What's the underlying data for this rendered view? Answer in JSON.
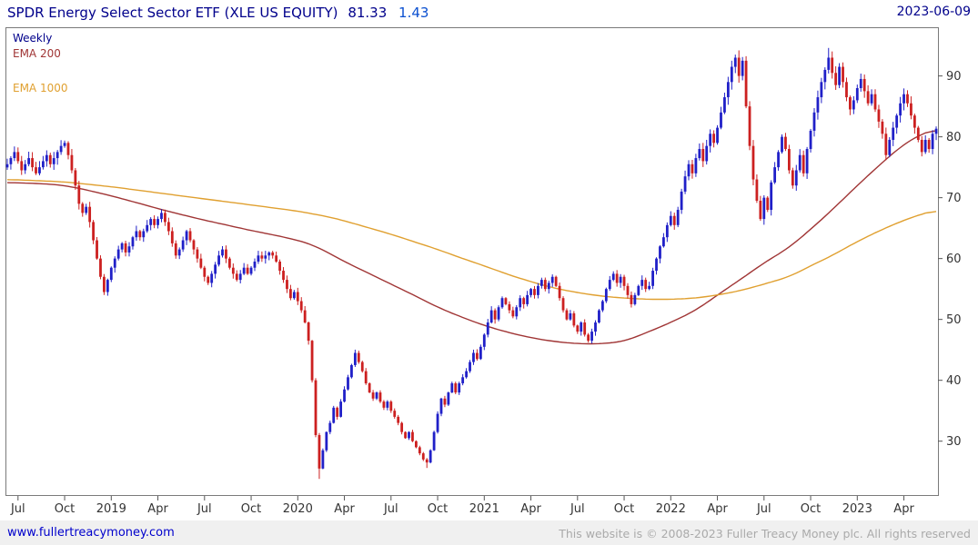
{
  "header": {
    "title": "SPDR Energy Select Sector ETF (XLE US EQUITY)",
    "price": "81.33",
    "change": "1.43",
    "date": "2023-06-09"
  },
  "legend": {
    "timeframe": "Weekly",
    "ema200": "EMA 200",
    "ema1000": "EMA 1000"
  },
  "footer": {
    "link": "www.fullertreacymoney.com",
    "copyright": "This website is © 2008-2023 Fuller Treacy Money plc. All rights reserved"
  },
  "colors": {
    "up": "#2020c8",
    "down": "#cc2020",
    "ema200": "#a03535",
    "ema1000": "#e0a030",
    "title": "#00008b",
    "change": "#0b50d0",
    "axis_text": "#333333",
    "border": "#7a7a7a",
    "tick": "#555555",
    "footer_bg": "#f0f0f0",
    "link": "#0000cc",
    "copyright": "#aaaaaa"
  },
  "chart_data": {
    "type": "candlestick",
    "timeframe": "Weekly",
    "title": "SPDR Energy Select Sector ETF (XLE US EQUITY)",
    "last_price": 81.33,
    "change": 1.43,
    "date": "2023-06-09",
    "ylim": [
      21,
      98
    ],
    "y_ticks": [
      30,
      40,
      50,
      60,
      70,
      80,
      90
    ],
    "x_ticks": [
      {
        "label": "Jul",
        "i": 3
      },
      {
        "label": "Oct",
        "i": 16
      },
      {
        "label": "2019",
        "i": 29
      },
      {
        "label": "Apr",
        "i": 42
      },
      {
        "label": "Jul",
        "i": 55
      },
      {
        "label": "Oct",
        "i": 68
      },
      {
        "label": "2020",
        "i": 81
      },
      {
        "label": "Apr",
        "i": 94
      },
      {
        "label": "Jul",
        "i": 107
      },
      {
        "label": "Oct",
        "i": 120
      },
      {
        "label": "2021",
        "i": 133
      },
      {
        "label": "Apr",
        "i": 146
      },
      {
        "label": "Jul",
        "i": 159
      },
      {
        "label": "Oct",
        "i": 172
      },
      {
        "label": "2022",
        "i": 185
      },
      {
        "label": "Apr",
        "i": 198
      },
      {
        "label": "Jul",
        "i": 211
      },
      {
        "label": "Oct",
        "i": 224
      },
      {
        "label": "2023",
        "i": 237
      },
      {
        "label": "Apr",
        "i": 250
      }
    ],
    "closes": [
      75.5,
      76.5,
      77.5,
      76.0,
      74.5,
      75.5,
      76.5,
      75.0,
      74.0,
      75.0,
      76.0,
      77.0,
      75.5,
      76.5,
      77.5,
      78.5,
      79.0,
      77.0,
      74.5,
      72.0,
      69.0,
      67.5,
      68.5,
      66.0,
      63.0,
      60.0,
      57.0,
      54.5,
      56.5,
      58.5,
      60.0,
      61.5,
      62.5,
      61.0,
      62.0,
      63.5,
      64.5,
      63.5,
      64.5,
      65.5,
      66.5,
      65.5,
      66.5,
      67.5,
      66.0,
      64.5,
      62.5,
      60.5,
      61.5,
      63.0,
      64.5,
      63.0,
      61.5,
      60.0,
      58.5,
      57.0,
      56.0,
      57.5,
      59.0,
      60.5,
      61.5,
      60.0,
      58.5,
      57.5,
      56.5,
      57.5,
      58.5,
      57.5,
      58.5,
      59.5,
      60.5,
      60.0,
      60.5,
      61.0,
      60.5,
      59.5,
      58.0,
      56.5,
      55.0,
      53.5,
      54.5,
      53.0,
      51.5,
      49.5,
      46.5,
      40.0,
      31.0,
      25.5,
      28.5,
      31.5,
      33.0,
      35.5,
      34.0,
      36.5,
      38.5,
      40.5,
      42.5,
      44.5,
      43.0,
      41.5,
      39.5,
      38.0,
      37.0,
      38.0,
      36.5,
      35.5,
      36.5,
      35.0,
      34.0,
      33.0,
      31.5,
      30.5,
      31.5,
      30.0,
      29.0,
      28.0,
      27.0,
      26.5,
      28.5,
      31.5,
      34.5,
      37.0,
      36.0,
      38.0,
      39.5,
      38.0,
      39.5,
      40.5,
      41.5,
      43.0,
      44.5,
      43.5,
      45.5,
      47.5,
      49.5,
      51.5,
      50.0,
      52.0,
      53.5,
      52.5,
      51.5,
      50.5,
      52.0,
      53.5,
      52.5,
      54.0,
      55.0,
      54.0,
      55.5,
      56.5,
      55.0,
      56.0,
      57.0,
      55.5,
      53.5,
      51.5,
      50.0,
      51.0,
      49.0,
      48.0,
      49.5,
      47.5,
      46.5,
      48.0,
      49.5,
      51.5,
      53.0,
      55.0,
      56.5,
      57.5,
      56.0,
      57.0,
      55.5,
      54.0,
      52.5,
      54.0,
      55.5,
      56.5,
      55.0,
      55.5,
      58.0,
      60.0,
      62.0,
      63.5,
      65.5,
      67.0,
      65.5,
      68.0,
      71.0,
      73.5,
      75.5,
      74.0,
      76.5,
      78.0,
      76.0,
      78.5,
      80.5,
      79.0,
      81.5,
      84.0,
      86.5,
      89.0,
      91.5,
      93.0,
      90.0,
      92.5,
      85.0,
      78.5,
      73.0,
      69.5,
      66.5,
      70.0,
      68.0,
      72.5,
      75.0,
      77.5,
      80.0,
      78.0,
      74.5,
      72.0,
      74.5,
      77.0,
      74.0,
      78.0,
      81.0,
      84.0,
      86.5,
      89.0,
      91.0,
      93.0,
      90.5,
      88.5,
      91.5,
      89.0,
      86.5,
      84.5,
      86.0,
      88.0,
      89.5,
      87.5,
      85.5,
      87.0,
      84.5,
      82.5,
      80.5,
      77.0,
      79.5,
      81.5,
      83.5,
      85.5,
      87.0,
      85.5,
      83.5,
      81.5,
      79.5,
      77.5,
      79.5,
      78.0,
      80.5,
      81.33
    ],
    "wick_overrides": {
      "87": {
        "low": 23.8
      },
      "117": {
        "low": 25.6
      },
      "204": {
        "high": 94.2
      },
      "229": {
        "high": 94.6
      }
    },
    "overlays": [
      {
        "name": "EMA 200",
        "color_key": "ema200",
        "keypoints": [
          [
            0,
            72.5
          ],
          [
            10,
            72.3
          ],
          [
            16,
            72.0
          ],
          [
            22,
            71.3
          ],
          [
            29,
            70.3
          ],
          [
            36,
            69.2
          ],
          [
            42,
            68.2
          ],
          [
            48,
            67.3
          ],
          [
            55,
            66.3
          ],
          [
            62,
            65.4
          ],
          [
            68,
            64.6
          ],
          [
            75,
            63.8
          ],
          [
            81,
            63.0
          ],
          [
            85,
            62.3
          ],
          [
            90,
            60.8
          ],
          [
            94,
            59.5
          ],
          [
            100,
            57.8
          ],
          [
            107,
            55.8
          ],
          [
            114,
            53.8
          ],
          [
            120,
            52.0
          ],
          [
            127,
            50.3
          ],
          [
            133,
            49.0
          ],
          [
            140,
            47.8
          ],
          [
            146,
            47.0
          ],
          [
            152,
            46.4
          ],
          [
            159,
            46.0
          ],
          [
            166,
            46.0
          ],
          [
            172,
            46.4
          ],
          [
            179,
            48.0
          ],
          [
            185,
            49.5
          ],
          [
            192,
            51.5
          ],
          [
            198,
            54.0
          ],
          [
            205,
            56.8
          ],
          [
            211,
            59.3
          ],
          [
            218,
            61.8
          ],
          [
            224,
            64.8
          ],
          [
            230,
            68.0
          ],
          [
            237,
            72.0
          ],
          [
            244,
            75.8
          ],
          [
            250,
            78.8
          ],
          [
            255,
            80.5
          ],
          [
            259,
            81.3
          ]
        ]
      },
      {
        "name": "EMA 1000",
        "color_key": "ema1000",
        "keypoints": [
          [
            0,
            73.0
          ],
          [
            16,
            72.6
          ],
          [
            29,
            71.8
          ],
          [
            42,
            70.8
          ],
          [
            55,
            69.8
          ],
          [
            68,
            68.8
          ],
          [
            81,
            67.8
          ],
          [
            90,
            66.8
          ],
          [
            94,
            66.2
          ],
          [
            107,
            64.0
          ],
          [
            120,
            61.5
          ],
          [
            127,
            60.0
          ],
          [
            133,
            58.8
          ],
          [
            140,
            57.3
          ],
          [
            146,
            56.2
          ],
          [
            152,
            55.2
          ],
          [
            159,
            54.4
          ],
          [
            166,
            53.8
          ],
          [
            172,
            53.5
          ],
          [
            179,
            53.3
          ],
          [
            185,
            53.3
          ],
          [
            192,
            53.5
          ],
          [
            198,
            54.0
          ],
          [
            205,
            54.8
          ],
          [
            211,
            55.8
          ],
          [
            218,
            57.0
          ],
          [
            224,
            58.8
          ],
          [
            230,
            60.5
          ],
          [
            237,
            62.8
          ],
          [
            244,
            64.8
          ],
          [
            250,
            66.3
          ],
          [
            255,
            67.3
          ],
          [
            259,
            68.0
          ]
        ]
      }
    ]
  }
}
